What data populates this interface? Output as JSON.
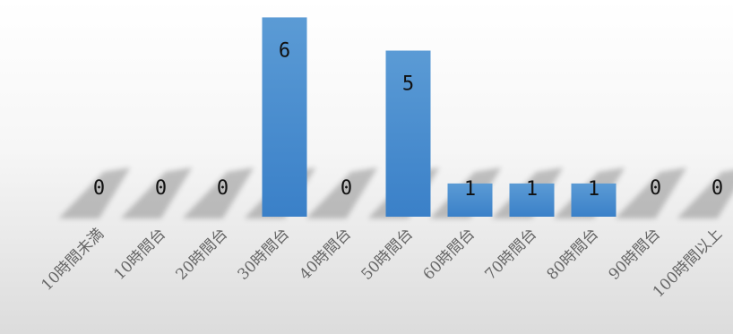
{
  "chart_data": {
    "type": "bar",
    "categories": [
      "10時間未満",
      "10時間台",
      "20時間台",
      "30時間台",
      "40時間台",
      "50時間台",
      "60時間台",
      "70時間台",
      "80時間台",
      "90時間台",
      "100時間以上"
    ],
    "values": [
      0,
      0,
      0,
      6,
      0,
      5,
      1,
      1,
      1,
      0,
      0
    ],
    "title": "",
    "xlabel": "",
    "ylabel": "",
    "ylim": [
      0,
      6.2
    ],
    "grid": false,
    "legend": "none",
    "bar_color_top": "#5b9bd5",
    "bar_color_bottom": "#3a80c8",
    "data_labels": true
  }
}
